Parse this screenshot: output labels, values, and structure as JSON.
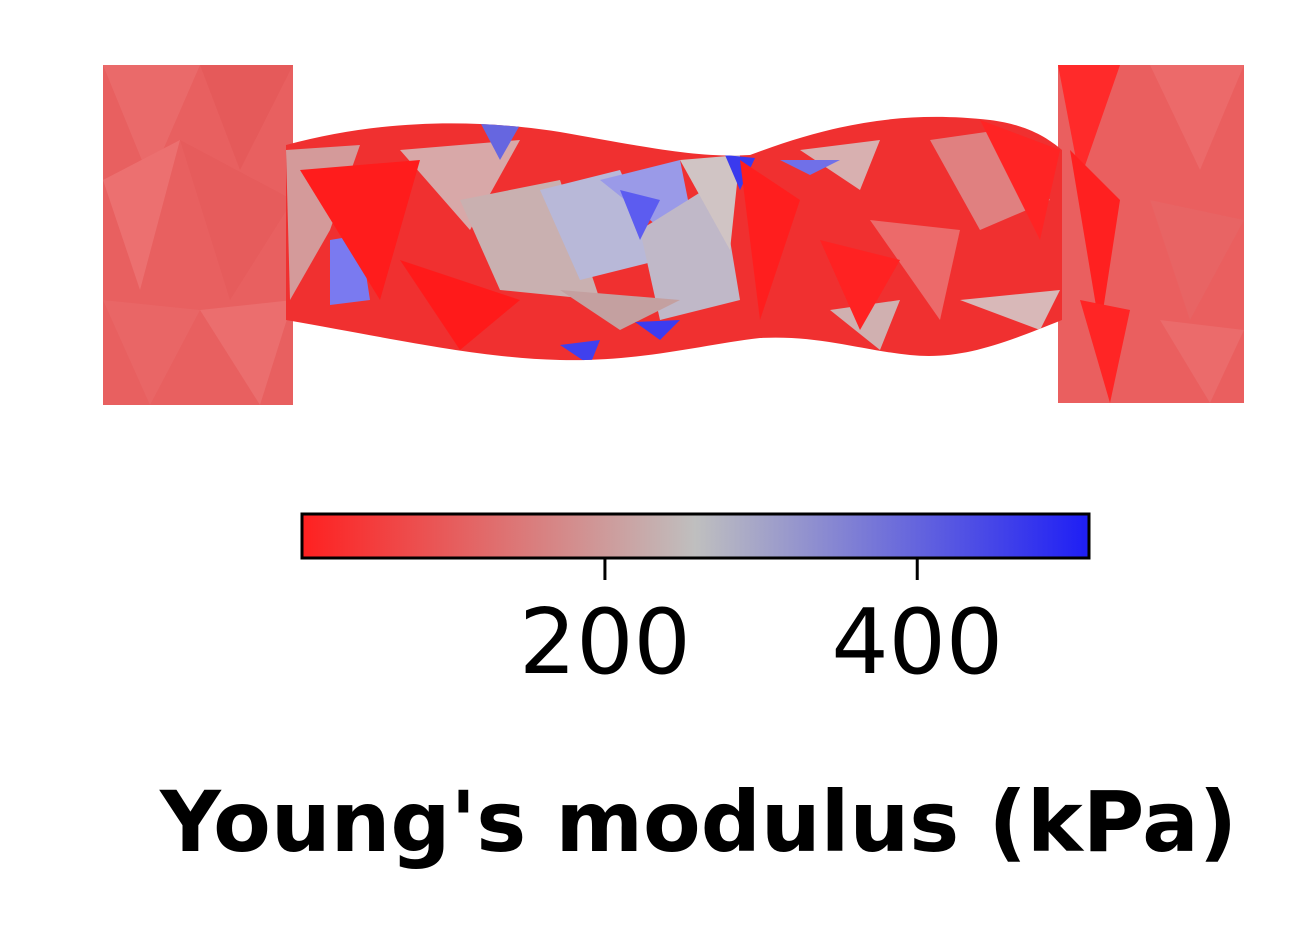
{
  "colorbar": {
    "title": "Young's modulus (kPa)",
    "min": 6,
    "max": 510,
    "ticks": [
      200,
      400
    ],
    "colors": {
      "low": "#ff2020",
      "mid": "#bfbfbf",
      "high": "#1e1ef5"
    }
  },
  "specimen": {
    "grip_color": "#e86060",
    "body_base_color": "#f03030"
  }
}
